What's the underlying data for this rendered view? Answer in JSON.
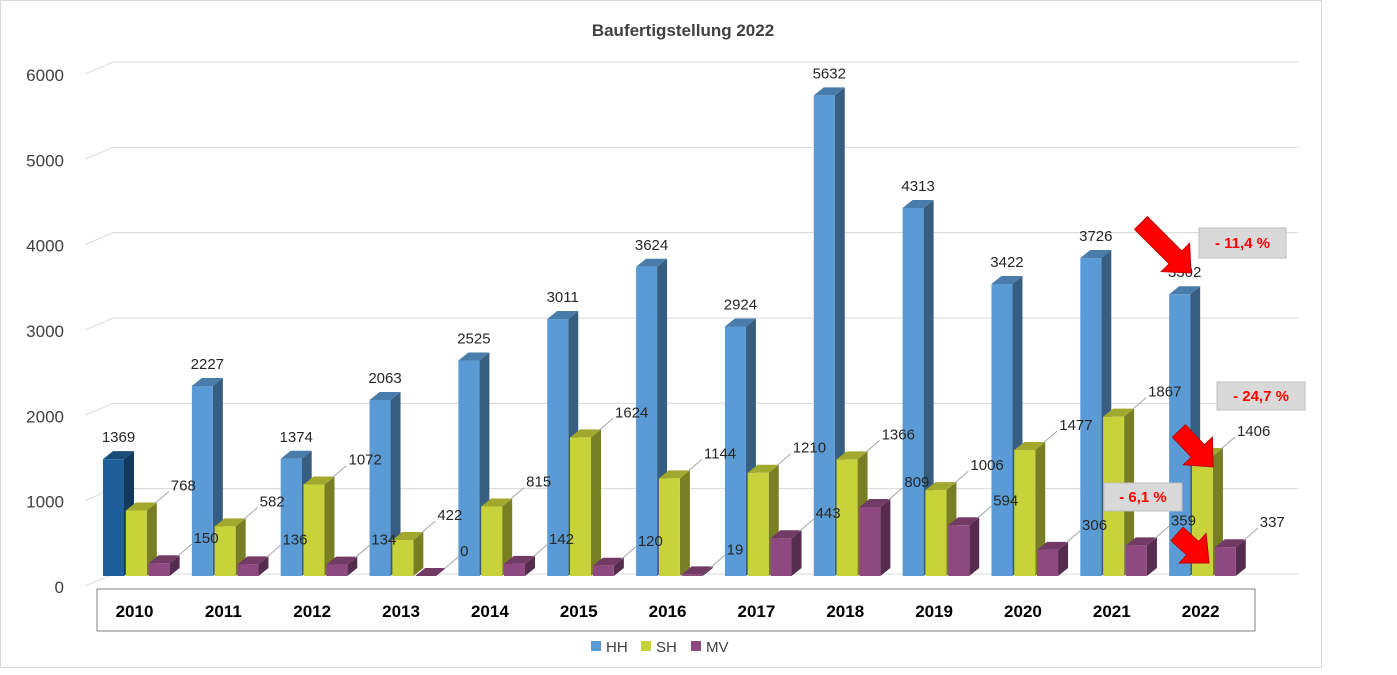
{
  "chart_data": {
    "type": "bar",
    "title": "Baufertigstellung 2022",
    "categories": [
      "2010",
      "2011",
      "2012",
      "2013",
      "2014",
      "2015",
      "2016",
      "2017",
      "2018",
      "2019",
      "2020",
      "2021",
      "2022"
    ],
    "series": [
      {
        "name": "HH",
        "values": [
          1369,
          2227,
          1374,
          2063,
          2525,
          3011,
          3624,
          2924,
          5632,
          4313,
          3422,
          3726,
          3302
        ],
        "color": "#5b9bd5"
      },
      {
        "name": "SH",
        "values": [
          768,
          582,
          1072,
          422,
          815,
          1624,
          1144,
          1210,
          1366,
          1006,
          1477,
          1867,
          1406
        ],
        "color": "#c8d23a"
      },
      {
        "name": "MV",
        "values": [
          150,
          136,
          134,
          0,
          142,
          120,
          19,
          443,
          809,
          594,
          306,
          359,
          337
        ],
        "color": "#8e4a80"
      }
    ],
    "highlight_color": "#1f5f99",
    "ylim": [
      0,
      6000
    ],
    "yticks": [
      "0",
      "1000",
      "2000",
      "3000",
      "4000",
      "5000",
      "6000"
    ],
    "grid": true,
    "legend_position": "bottom",
    "annotations": [
      {
        "text": "- 11,4 %",
        "series": "HH"
      },
      {
        "text": "- 24,7 %",
        "series": "SH"
      },
      {
        "text": "- 6,1 %",
        "series": "MV"
      }
    ],
    "annotation_color": "#ff0000"
  }
}
